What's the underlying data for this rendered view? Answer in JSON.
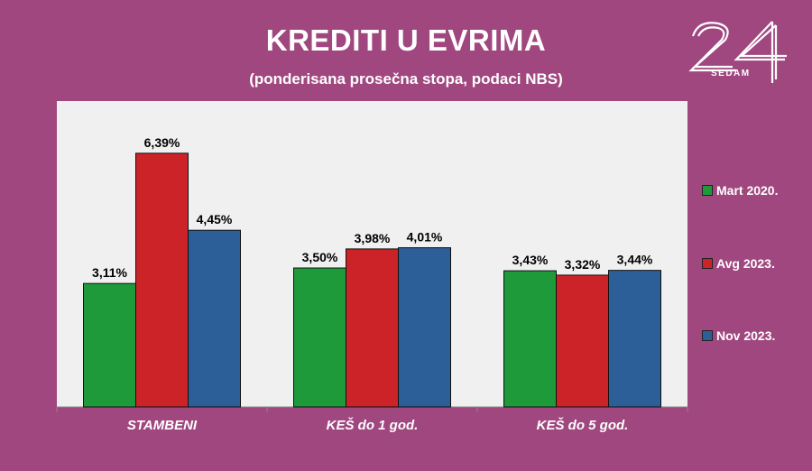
{
  "chart_data": {
    "type": "bar",
    "title": "KREDITI U EVRIMA",
    "subtitle": "(ponderisana prosečna stopa, podaci NBS)",
    "categories": [
      "STAMBENI",
      "KEŠ do 1 god.",
      "KEŠ do 5 god."
    ],
    "series": [
      {
        "name": "Mart 2020.",
        "values": [
          3.11,
          3.5,
          3.43
        ],
        "labels": [
          "3,11%",
          "3,50%",
          "3,43%"
        ],
        "color": "#1f9a3a"
      },
      {
        "name": "Avg 2023.",
        "values": [
          6.39,
          3.98,
          3.32
        ],
        "labels": [
          "6,39%",
          "3,98%",
          "3,32%"
        ],
        "color": "#cc2328"
      },
      {
        "name": "Nov 2023.",
        "values": [
          4.45,
          4.01,
          3.44
        ],
        "labels": [
          "4,45%",
          "4,01%",
          "3,44%"
        ],
        "color": "#2c5f97"
      }
    ],
    "ylim": [
      0,
      7
    ],
    "grid": false,
    "legend_position": "right"
  },
  "logo": {
    "number": "24",
    "text": "SEDAM"
  },
  "colors": {
    "background": "#a0477f",
    "plot_area": "#f0f0f0"
  }
}
